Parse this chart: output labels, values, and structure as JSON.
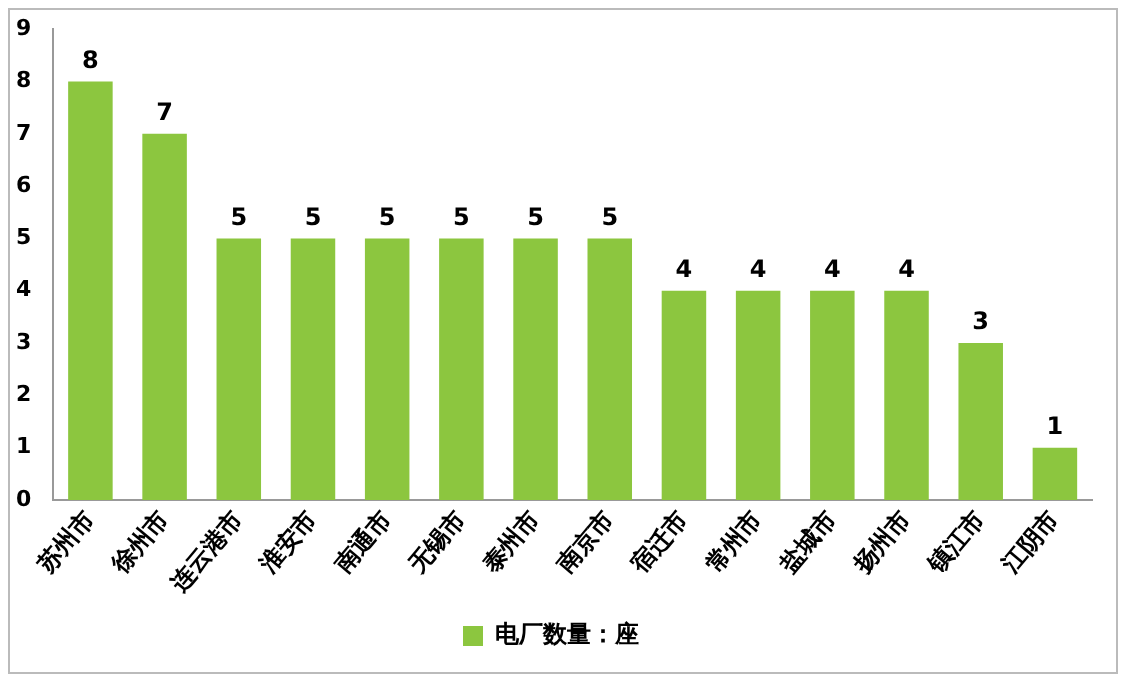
{
  "chart_data": {
    "type": "bar",
    "categories": [
      "苏州市",
      "徐州市",
      "连云港市",
      "淮安市",
      "南通市",
      "无锡市",
      "泰州市",
      "南京市",
      "宿迁市",
      "常州市",
      "盐城市",
      "扬州市",
      "镇江市",
      "江阴市"
    ],
    "series": [
      {
        "name": "电厂数量：座",
        "color": "#8cc63f",
        "values": [
          8,
          7,
          5,
          5,
          5,
          5,
          5,
          5,
          4,
          4,
          4,
          4,
          3,
          1
        ]
      }
    ],
    "ylim": [
      0,
      9
    ],
    "yticks": [
      0,
      1,
      2,
      3,
      4,
      5,
      6,
      7,
      8,
      9
    ],
    "grid": false,
    "legend": "bottom",
    "data_labels": true
  }
}
